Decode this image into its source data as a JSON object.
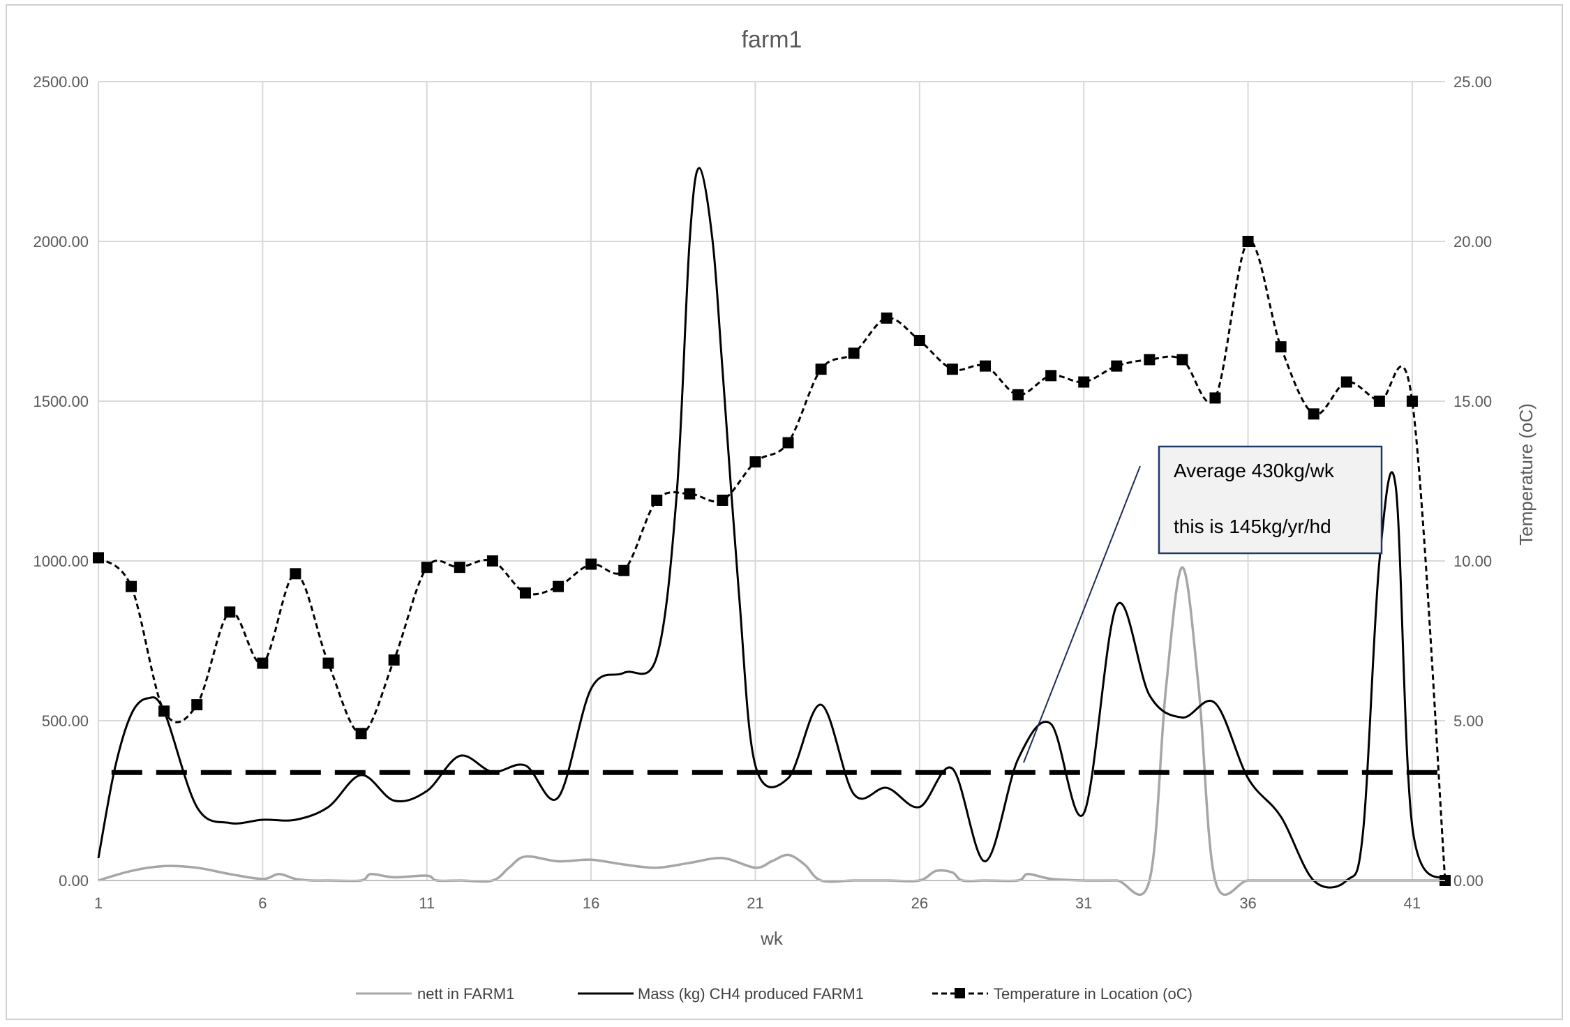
{
  "chart_data": {
    "type": "line",
    "title": "farm1",
    "xlabel": "wk",
    "ylabel": "",
    "y2label": "Temperature (oC)",
    "xlim": [
      1,
      42
    ],
    "ylim": [
      0,
      2500
    ],
    "y2lim": [
      0,
      25
    ],
    "x_ticks": [
      1,
      6,
      11,
      16,
      21,
      26,
      31,
      36,
      41
    ],
    "y_ticks": [
      "0.00",
      "500.00",
      "1000.00",
      "1500.00",
      "2000.00",
      "2500.00"
    ],
    "y2_ticks": [
      "0.00",
      "5.00",
      "10.00",
      "15.00",
      "20.00",
      "25.00"
    ],
    "grid": true,
    "legend_position": "bottom",
    "series": [
      {
        "name": "nett in FARM1",
        "axis": "left",
        "color": "#a6a6a6",
        "style": "solid",
        "x": [
          1,
          2,
          3,
          4,
          5,
          6,
          6.5,
          7,
          7.5,
          8,
          9,
          9.3,
          10,
          11,
          11.3,
          12,
          13,
          13.5,
          14,
          15,
          16,
          17,
          18,
          19,
          20,
          21,
          21.5,
          22,
          22.5,
          23,
          24,
          25,
          26,
          26.5,
          27,
          27.3,
          28,
          29,
          29.3,
          30,
          31,
          32,
          33,
          33.5,
          34,
          34.5,
          35,
          36,
          37,
          38,
          39,
          40,
          41,
          42
        ],
        "values": [
          0,
          30,
          45,
          40,
          20,
          5,
          20,
          5,
          0,
          0,
          0,
          20,
          10,
          15,
          0,
          0,
          0,
          40,
          75,
          60,
          65,
          50,
          40,
          55,
          70,
          40,
          60,
          80,
          50,
          0,
          0,
          0,
          0,
          30,
          25,
          0,
          0,
          0,
          20,
          5,
          0,
          0,
          0,
          600,
          980,
          600,
          0,
          0,
          0,
          0,
          0,
          0,
          0,
          0
        ]
      },
      {
        "name": "Mass (kg) CH4 produced FARM1",
        "axis": "left",
        "color": "#000000",
        "style": "solid",
        "x": [
          1,
          1.5,
          2,
          2.5,
          3,
          4,
          5,
          6,
          7,
          8,
          9,
          10,
          11,
          12,
          13,
          14,
          15,
          16,
          17,
          18,
          18.6,
          19,
          19.3,
          19.7,
          20,
          20.5,
          21,
          22,
          23,
          24,
          25,
          26,
          27,
          28,
          29,
          30,
          31,
          32,
          33,
          34,
          35,
          36,
          37,
          38,
          39,
          39.5,
          40,
          40.5,
          41,
          42
        ],
        "values": [
          70,
          350,
          520,
          570,
          530,
          230,
          180,
          190,
          190,
          230,
          330,
          250,
          280,
          390,
          340,
          360,
          260,
          600,
          650,
          700,
          1200,
          2000,
          2230,
          2000,
          1600,
          900,
          360,
          320,
          550,
          270,
          290,
          230,
          350,
          60,
          380,
          490,
          210,
          860,
          580,
          510,
          555,
          320,
          200,
          0,
          0,
          150,
          1000,
          1230,
          170,
          0
        ]
      },
      {
        "name": "Temperature in Location (oC)",
        "axis": "right",
        "color": "#000000",
        "style": "dashed",
        "marker": "square",
        "x": [
          1,
          2,
          3,
          4,
          5,
          6,
          7,
          8,
          9,
          10,
          11,
          12,
          13,
          14,
          15,
          16,
          17,
          18,
          19,
          20,
          21,
          22,
          23,
          24,
          25,
          26,
          27,
          28,
          29,
          30,
          31,
          32,
          33,
          34,
          35,
          36,
          37,
          38,
          39,
          40,
          41,
          42
        ],
        "values": [
          10.1,
          9.2,
          5.3,
          5.5,
          8.4,
          6.8,
          9.6,
          6.8,
          4.6,
          6.9,
          9.8,
          9.8,
          10.0,
          9.0,
          9.2,
          9.9,
          9.7,
          11.9,
          12.1,
          11.9,
          13.1,
          13.7,
          16.0,
          16.5,
          17.6,
          16.9,
          16.0,
          16.1,
          15.2,
          15.8,
          15.6,
          16.1,
          16.3,
          16.3,
          15.1,
          20.0,
          16.7,
          14.6,
          15.6,
          15.0,
          15.0,
          0.0
        ]
      },
      {
        "name": "",
        "axis": "left",
        "color": "#000000",
        "style": "long-dash",
        "x": [
          1.4,
          42
        ],
        "values": [
          338,
          338
        ]
      }
    ],
    "annotation": {
      "lines": [
        "Average 430kg/wk",
        "this is 145kg/yr/hd"
      ],
      "pointer_x": 29.8,
      "pointer_y": 370
    }
  }
}
